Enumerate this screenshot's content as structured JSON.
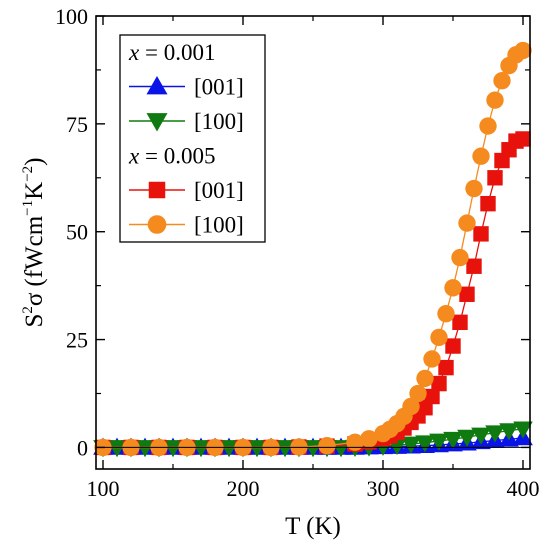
{
  "chart_data": {
    "type": "line",
    "xlabel": "T  (K)",
    "ylabel_parts": {
      "base": "S",
      "sup1": "2",
      "sigma": "σ",
      "units": "(fWcm",
      "sup2": "−1",
      "k": "K",
      "sup3": "−2",
      "close": ")"
    },
    "xlim": [
      95,
      405
    ],
    "ylim": [
      -5,
      100
    ],
    "xticks": [
      100,
      200,
      300,
      400
    ],
    "yticks": [
      0,
      25,
      50,
      75,
      100
    ],
    "legend": {
      "position": "top-left",
      "groups": [
        {
          "var": "x",
          "eq": " = 0.001"
        },
        {
          "var": "x",
          "eq": " = 0.005"
        }
      ]
    },
    "series": [
      {
        "name": "[001]",
        "group": 0,
        "marker": "triangle-up",
        "color": "#0a14e6",
        "x": [
          100,
          110,
          120,
          130,
          140,
          150,
          160,
          170,
          180,
          190,
          200,
          210,
          220,
          230,
          240,
          250,
          260,
          270,
          280,
          290,
          300,
          310,
          320,
          330,
          340,
          350,
          360,
          370,
          380,
          390,
          400
        ],
        "y": [
          0,
          0,
          0,
          0,
          0,
          0,
          0,
          0,
          0,
          0,
          0,
          0,
          0,
          0,
          0,
          0,
          0,
          0,
          0,
          0.1,
          0.15,
          0.2,
          0.3,
          0.4,
          0.6,
          0.8,
          1.0,
          1.3,
          1.6,
          1.9,
          2.2
        ]
      },
      {
        "name": "[100]",
        "group": 0,
        "marker": "triangle-down",
        "color": "#0f7a0f",
        "x": [
          100,
          110,
          120,
          130,
          140,
          150,
          160,
          170,
          180,
          190,
          200,
          210,
          220,
          230,
          240,
          250,
          260,
          270,
          280,
          290,
          300,
          310,
          320,
          330,
          340,
          350,
          360,
          370,
          380,
          390,
          400
        ],
        "y": [
          0,
          0,
          0,
          0,
          0,
          0,
          0,
          0,
          0,
          0,
          0,
          0,
          0,
          0,
          0,
          0,
          0,
          0,
          0.05,
          0.15,
          0.3,
          0.5,
          0.8,
          1.1,
          1.5,
          1.9,
          2.4,
          2.9,
          3.4,
          3.9,
          4.3
        ]
      },
      {
        "name": "[001]",
        "group": 1,
        "marker": "square",
        "color": "#e8120c",
        "x": [
          100,
          120,
          140,
          160,
          180,
          200,
          220,
          240,
          260,
          280,
          290,
          300,
          305,
          310,
          315,
          320,
          325,
          330,
          335,
          340,
          345,
          350,
          355,
          360,
          365,
          370,
          375,
          380,
          385,
          390,
          395,
          400
        ],
        "y": [
          0,
          0,
          0,
          0,
          0,
          0,
          0,
          0.1,
          0.3,
          0.8,
          1.3,
          2.1,
          2.7,
          3.5,
          4.5,
          5.8,
          7.3,
          9.2,
          11.8,
          14.8,
          18.5,
          23.5,
          29.0,
          35.5,
          42.0,
          49.5,
          56.5,
          62.5,
          66.5,
          69.0,
          71.0,
          71.5
        ]
      },
      {
        "name": "[100]",
        "group": 1,
        "marker": "circle",
        "color": "#f58a1e",
        "x": [
          100,
          120,
          140,
          160,
          180,
          200,
          220,
          240,
          260,
          280,
          290,
          300,
          305,
          310,
          315,
          320,
          325,
          330,
          335,
          340,
          345,
          350,
          355,
          360,
          365,
          370,
          375,
          380,
          385,
          390,
          395,
          400
        ],
        "y": [
          0,
          0,
          0,
          0,
          0,
          0,
          0,
          0.1,
          0.4,
          1.2,
          2.0,
          3.2,
          4.2,
          5.5,
          7.2,
          9.5,
          12.5,
          16.0,
          20.5,
          25.5,
          31.0,
          37.0,
          44.0,
          52.0,
          60.0,
          67.5,
          74.5,
          80.5,
          85.0,
          88.5,
          91.0,
          92.0
        ]
      }
    ]
  }
}
